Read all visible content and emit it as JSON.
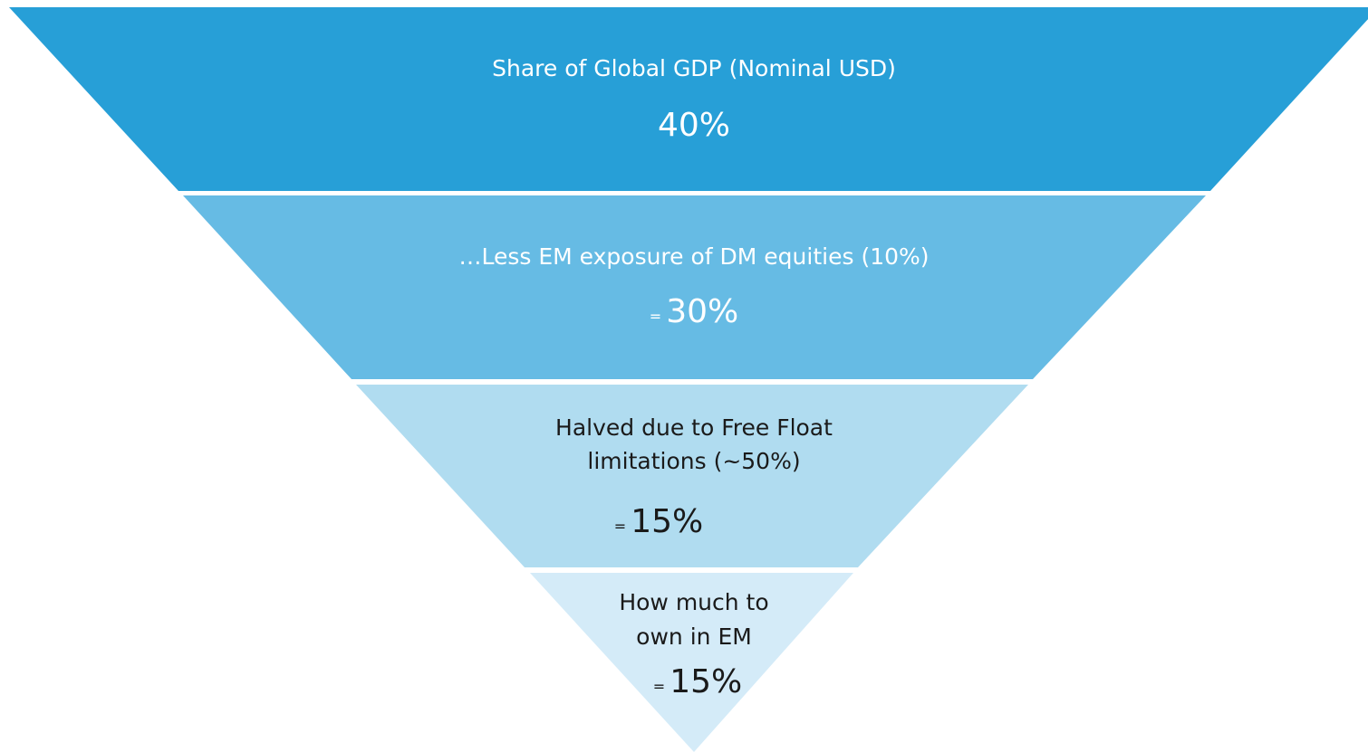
{
  "levels": [
    {
      "label": [
        "Share of Global GDP (Nominal USD)"
      ],
      "prefix": null,
      "value": "40%"
    },
    {
      "label": [
        "…Less EM exposure of DM equities (10%)"
      ],
      "prefix": "=",
      "value": "30%"
    },
    {
      "label": [
        "Halved due to Free Float",
        "limitations (~50%)"
      ],
      "prefix": "=",
      "value": "15%"
    },
    {
      "label": [
        "How  much to",
        "own in  EM"
      ],
      "prefix": "=",
      "value": "15%"
    }
  ]
}
